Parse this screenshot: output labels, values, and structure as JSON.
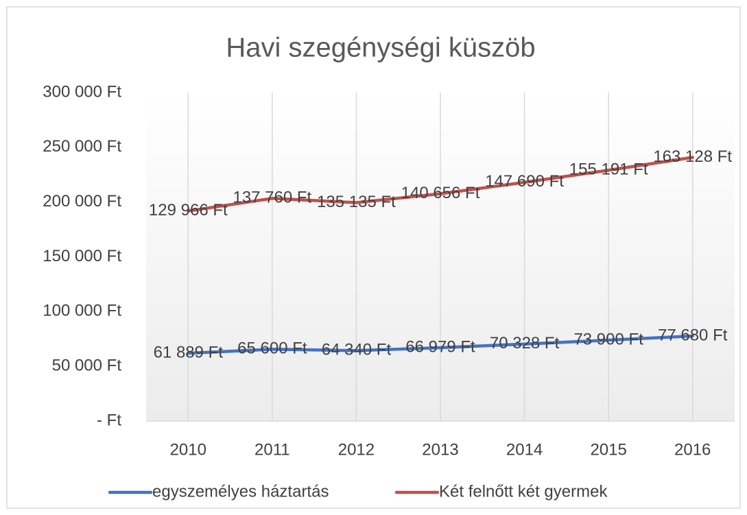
{
  "chart_data": {
    "type": "line",
    "stacked": true,
    "title": "Havi szegénységi küszöb",
    "categories": [
      "2010",
      "2011",
      "2012",
      "2013",
      "2014",
      "2015",
      "2016"
    ],
    "series": [
      {
        "name": "egyszemélyes háztartás",
        "color": "#4472c4",
        "values": [
          61889,
          65600,
          64340,
          66979,
          70328,
          73900,
          77680
        ],
        "value_labels": [
          "61 889 Ft",
          "65 600 Ft",
          "64 340 Ft",
          "66 979 Ft",
          "70 328 Ft",
          "73 900 Ft",
          "77 680 Ft"
        ]
      },
      {
        "name": "Két felnőtt két gyermek",
        "color": "#c0504d",
        "values": [
          129966,
          137760,
          135135,
          140656,
          147690,
          155191,
          163128
        ],
        "value_labels": [
          "129 966 Ft",
          "137 760 Ft",
          "135 135 Ft",
          "140 656 Ft",
          "147 690 Ft",
          "155 191 Ft",
          "163 128 Ft"
        ]
      }
    ],
    "ylim": [
      0,
      300000
    ],
    "yticks": [
      {
        "value": 0,
        "label": "-   Ft"
      },
      {
        "value": 50000,
        "label": "50 000 Ft"
      },
      {
        "value": 100000,
        "label": "100 000 Ft"
      },
      {
        "value": 150000,
        "label": "150 000 Ft"
      },
      {
        "value": 200000,
        "label": "200 000 Ft"
      },
      {
        "value": 250000,
        "label": "250 000 Ft"
      },
      {
        "value": 300000,
        "label": "300 000 Ft"
      }
    ],
    "grid": "x",
    "legend": "bottom"
  }
}
